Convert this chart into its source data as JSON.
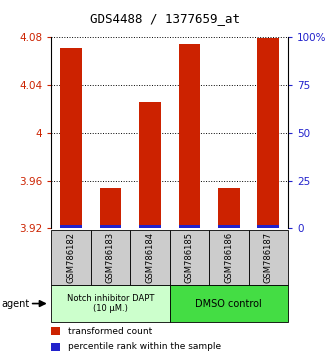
{
  "title": "GDS4488 / 1377659_at",
  "samples": [
    "GSM786182",
    "GSM786183",
    "GSM786184",
    "GSM786185",
    "GSM786186",
    "GSM786187"
  ],
  "red_values": [
    4.071,
    3.954,
    4.026,
    4.074,
    3.954,
    4.079
  ],
  "blue_pct": [
    1.5,
    1.5,
    1.5,
    1.5,
    1.5,
    1.5
  ],
  "baseline": 3.92,
  "ylim_left": [
    3.92,
    4.08
  ],
  "ylim_right": [
    0,
    100
  ],
  "yticks_left": [
    3.92,
    3.96,
    4.0,
    4.04,
    4.08
  ],
  "yticks_right": [
    0,
    25,
    50,
    75,
    100
  ],
  "ytick_labels_left": [
    "3.92",
    "3.96",
    "4",
    "4.04",
    "4.08"
  ],
  "ytick_labels_right": [
    "0",
    "25",
    "50",
    "75",
    "100%"
  ],
  "group1_label": "Notch inhibitor DAPT\n(10 μM.)",
  "group2_label": "DMSO control",
  "agent_label": "agent",
  "legend1": "transformed count",
  "legend2": "percentile rank within the sample",
  "bar_width": 0.55,
  "red_color": "#cc2200",
  "blue_color": "#2222cc",
  "group1_bg": "#ccffcc",
  "group2_bg": "#44dd44",
  "sample_bg": "#cccccc",
  "title_fontsize": 9,
  "tick_fontsize": 7.5,
  "label_fontsize": 6.5
}
